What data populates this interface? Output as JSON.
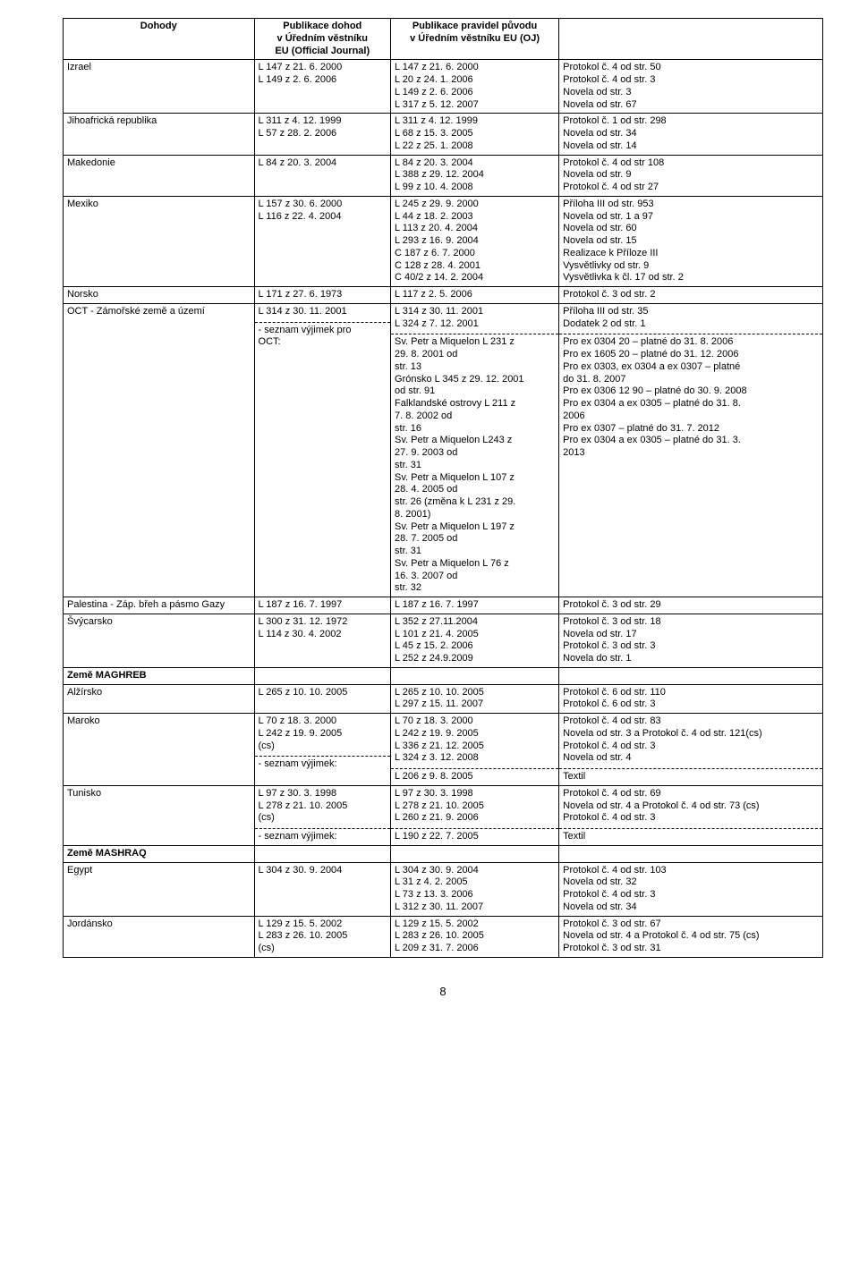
{
  "header": {
    "c1": "Dohody",
    "c2": "Publikace dohod\nv Úředním věstníku\nEU (Official Journal)",
    "c3": "Publikace pravidel původu\nv Úředním věstníku EU (OJ)",
    "c4": ""
  },
  "rows": [
    {
      "c1": "Izrael",
      "c2": "L 147 z 21. 6. 2000\nL 149 z 2. 6. 2006",
      "c3": "L 147 z 21. 6. 2000\nL 20 z 24. 1. 2006\nL 149 z 2. 6. 2006\nL 317 z 5. 12. 2007",
      "c4": "Protokol č. 4 od str. 50\nProtokol č. 4 od str. 3\nNovela od str. 3\nNovela od str. 67"
    },
    {
      "c1": "Jihoafrická republika",
      "c2": "L 311 z 4. 12. 1999\nL 57 z 28. 2. 2006",
      "c3": "L 311 z 4. 12. 1999\nL 68 z 15. 3. 2005\nL 22 z 25. 1. 2008",
      "c4": "Protokol č. 1 od str. 298\nNovela od str. 34\nNovela od str. 14"
    },
    {
      "c1": "Makedonie",
      "c2": "L 84 z 20. 3. 2004",
      "c3": "L 84 z 20. 3. 2004\nL 388 z 29. 12. 2004\nL 99 z 10. 4. 2008",
      "c4": "Protokol č. 4 od str 108\nNovela od str. 9\nProtokol č. 4 od str 27"
    },
    {
      "c1": "Mexiko",
      "c2": "L 157 z 30. 6. 2000\nL 116 z 22. 4. 2004",
      "c3": "L 245 z 29. 9. 2000\nL 44 z 18. 2. 2003\nL 113 z 20. 4. 2004\nL 293 z 16. 9. 2004\nC 187 z 6. 7. 2000\nC 128 z 28. 4. 2001\nC 40/2 z 14. 2. 2004",
      "c4": "Příloha III od str. 953\nNovela od str. 1 a 97\nNovela od str. 60\nNovela od str. 15\nRealizace k Příloze III\nVysvětlivky od str. 9\nVysvětlivka k čl. 17 od str. 2"
    },
    {
      "c1": "Norsko",
      "c2": "L 171 z 27. 6. 1973",
      "c3": "L 117 z 2. 5. 2006",
      "c4": "Protokol č. 3 od str. 2"
    }
  ],
  "oct": {
    "c1": "OCT - Zámořské země a území",
    "top": {
      "c2": "L 314 z 30. 11. 2001",
      "c3": "L 314 z 30. 11. 2001\nL 324 z 7. 12. 2001",
      "c4": "Příloha III od str. 35\nDodatek 2 od str. 1"
    },
    "bot": {
      "c2": "- seznam výjimek pro\n  OCT:",
      "c3": "Sv. Petr a Miquelon L 231 z\n29. 8. 2001 od\nstr. 13\nGrónsko L 345 z 29. 12. 2001\nod str. 91\nFalklandské ostrovy L 211 z\n7. 8. 2002 od\nstr. 16\nSv. Petr a Miquelon L243 z\n27. 9. 2003 od\nstr. 31\nSv. Petr a Miquelon L 107 z\n28. 4. 2005 od\nstr. 26 (změna k L 231 z 29.\n8. 2001)\nSv. Petr a Miquelon L 197 z\n28. 7. 2005 od\nstr. 31\nSv. Petr a Miquelon L 76 z\n16. 3. 2007 od\nstr. 32",
      "c4": "Pro ex 0304 20 – platné do 31. 8. 2006\nPro ex 1605 20 – platné do 31. 12. 2006\nPro ex 0303, ex 0304 a ex 0307 – platné\ndo 31. 8. 2007\nPro ex 0306 12 90 – platné do 30. 9. 2008\nPro ex 0304 a ex 0305 – platné do 31. 8.\n2006\nPro ex 0307 – platné do 31. 7. 2012\nPro ex 0304 a ex 0305 – platné do 31. 3.\n2013"
    }
  },
  "rows2": [
    {
      "c1": "Palestina - Záp. břeh a pásmo Gazy",
      "c2": "L 187 z 16. 7. 1997",
      "c3": "L 187 z 16. 7. 1997",
      "c4": "Protokol č. 3 od str. 29"
    },
    {
      "c1": "Švýcarsko",
      "c2": "L 300 z 31. 12. 1972\nL 114 z 30. 4. 2002",
      "c3": "L 352 z 27.11.2004\nL 101 z 21. 4. 2005\nL 45 z 15. 2. 2006\nL 252 z 24.9.2009",
      "c4": "Protokol č. 3 od str. 18\nNovela od str. 17\nProtokol č. 3 od str. 3\nNovela do str. 1"
    }
  ],
  "maghreb_label": "Země MAGHREB",
  "alzirsko": {
    "c1": "Alžírsko",
    "c2": "L 265 z 10. 10. 2005",
    "c3": "L 265 z 10. 10. 2005\nL 297 z 15. 11. 2007",
    "c4": "Protokol č. 6 od str. 110\nProtokol č. 6 od str. 3"
  },
  "maroko": {
    "c1": "Maroko",
    "top": {
      "c2": "L 70 z 18. 3. 2000\nL 242 z 19. 9. 2005\n(cs)",
      "c3": "L 70 z 18. 3. 2000\nL 242 z 19. 9. 2005\nL 336 z 21. 12. 2005\nL 324 z 3. 12. 2008",
      "c4": "Protokol č. 4 od str. 83\nNovela od str. 3 a Protokol č. 4 od str. 121(cs)\nProtokol č. 4 od str. 3\nNovela od str. 4"
    },
    "bot": {
      "c2": "- seznam výjimek:",
      "c3": "L 206 z 9. 8. 2005",
      "c4": "Textil"
    }
  },
  "tunisko": {
    "c1": "Tunisko",
    "top": {
      "c2": "L 97 z 30. 3. 1998\nL 278 z 21. 10. 2005\n(cs)",
      "c3": "L 97 z 30. 3. 1998\nL 278 z 21. 10. 2005\nL 260 z 21. 9. 2006",
      "c4": "Protokol č. 4 od str. 69\nNovela od str. 4 a Protokol č. 4 od str. 73 (cs)\nProtokol č. 4 od str. 3"
    },
    "bot": {
      "c2": "- seznam výjimek:",
      "c3": "L 190 z 22. 7. 2005",
      "c4": "Textil"
    }
  },
  "mashraq_label": "Země MASHRAQ",
  "egypt": {
    "c1": "Egypt",
    "c2": "L 304 z 30. 9. 2004",
    "c3": "L 304 z 30. 9. 2004\nL 31 z 4. 2. 2005\nL 73 z 13. 3. 2006\nL 312 z 30. 11. 2007",
    "c4": "Protokol č. 4 od str. 103\nNovela od str. 32\nProtokol č. 4 od str. 3\nNovela od str. 34"
  },
  "jordansko": {
    "c1": "Jordánsko",
    "c2": "L 129 z 15. 5. 2002\nL 283 z 26. 10. 2005\n(cs)",
    "c3": "L 129 z 15. 5. 2002\nL 283 z 26. 10. 2005\nL 209 z 31. 7. 2006",
    "c4": "Protokol č. 3 od str. 67\nNovela od str. 4 a Protokol č. 4 od str. 75 (cs)\nProtokol č. 3 od str. 31"
  },
  "page_number": "8"
}
